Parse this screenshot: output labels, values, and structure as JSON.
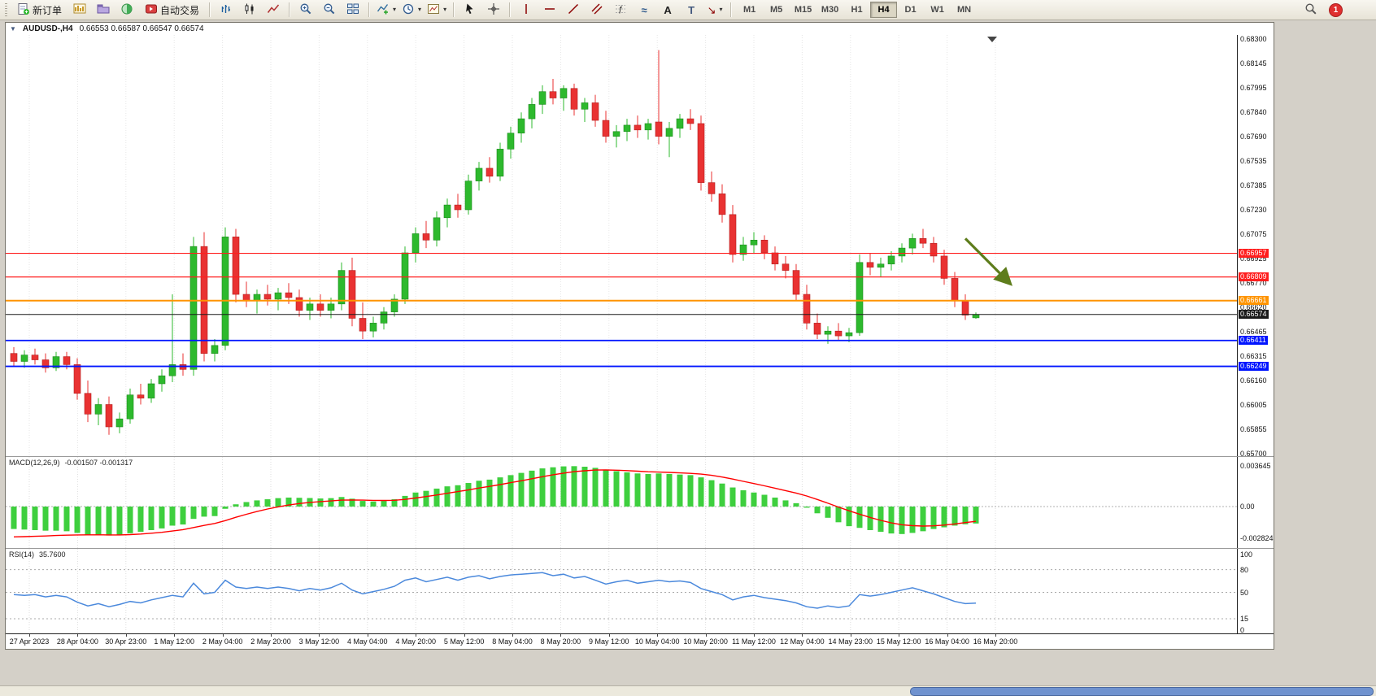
{
  "window": {
    "title_symbol": "AUDUSD-,H4",
    "title_ohlc": "0.66553 0.66587 0.66547 0.66574"
  },
  "toolbar": {
    "new_order_label": "新订单",
    "autotrading_label": "自动交易",
    "timeframes": [
      "M1",
      "M5",
      "M15",
      "M30",
      "H1",
      "H4",
      "D1",
      "W1",
      "MN"
    ],
    "active_timeframe": "H4",
    "notification_count": "1",
    "glyphs": {
      "caret": "▾",
      "oct": "▼",
      "waves": "≈",
      "fibonacci": "ƒ",
      "text": "A",
      "label": "T",
      "arrow": "↘"
    },
    "icon_names": [
      "new-order-icon",
      "charts-icon",
      "profiles-icon",
      "data-window-icon",
      "autotrading-icon",
      "bar-chart-icon",
      "candlestick-chart-icon",
      "line-chart-icon",
      "zoom-in-icon",
      "zoom-out-icon",
      "tile-windows-icon",
      "indicators-icon",
      "periods-icon",
      "templates-icon",
      "cursor-icon",
      "crosshair-icon",
      "vertical-line-icon",
      "horizontal-line-icon",
      "trendline-icon",
      "channel-icon",
      "fibonacci-icon",
      "waves-icon",
      "text-icon",
      "label-icon",
      "arrows-icon",
      "search-icon"
    ]
  },
  "indicators": {
    "macd_name": "MACD(12,26,9)",
    "macd_values": "-0.001507 -0.001317",
    "rsi_name": "RSI(14)",
    "rsi_value": "35.7600"
  },
  "axes": {
    "price_labels": [
      "0.68300",
      "0.68145",
      "0.67995",
      "0.67840",
      "0.67690",
      "0.67535",
      "0.67385",
      "0.67230",
      "0.67075",
      "0.66925",
      "0.66770",
      "0.66620",
      "0.66465",
      "0.66315",
      "0.66160",
      "0.66005",
      "0.65855",
      "0.65700"
    ],
    "macd_labels": [
      "0.003645",
      "0.00",
      "-0.002824"
    ],
    "rsi_labels": [
      "100",
      "80",
      "50",
      "15",
      "0"
    ],
    "time_labels": [
      "27 Apr 2023",
      "28 Apr 04:00",
      "30 Apr 23:00",
      "1 May 12:00",
      "2 May 04:00",
      "2 May 20:00",
      "3 May 12:00",
      "4 May 04:00",
      "4 May 20:00",
      "5 May 12:00",
      "8 May 04:00",
      "8 May 20:00",
      "9 May 12:00",
      "10 May 04:00",
      "10 May 20:00",
      "11 May 12:00",
      "12 May 04:00",
      "14 May 23:00",
      "15 May 12:00",
      "16 May 04:00",
      "16 May 20:00"
    ]
  },
  "hlines": [
    {
      "price": 0.66957,
      "label": "0.66957",
      "color": "#ff1e1e",
      "width": 1.2
    },
    {
      "price": 0.66809,
      "label": "0.66809",
      "color": "#ff1e1e",
      "width": 1.2
    },
    {
      "price": 0.66661,
      "label": "0.66661",
      "color": "#ff9400",
      "width": 2
    },
    {
      "price": 0.66574,
      "label": "0.66574",
      "color": "#1a1a1a",
      "width": 1
    },
    {
      "price": 0.66411,
      "label": "0.66411",
      "color": "#0014ff",
      "width": 1.8
    },
    {
      "price": 0.66249,
      "label": "0.66249",
      "color": "#0014ff",
      "width": 1.8
    }
  ],
  "annotation_arrow": {
    "color": "#5e7d1c",
    "from_index": 90,
    "from_price": 0.6705,
    "to_index": 94.2,
    "to_price": 0.6677
  },
  "chart_data": {
    "type": "candlestick",
    "symbol": "AUDUSD",
    "timeframe": "H4",
    "title": "AUDUSD-,H4",
    "ylim_main": [
      0.657,
      0.683
    ],
    "candles": [
      [
        0.6633,
        0.6637,
        0.6625,
        0.6628
      ],
      [
        0.6628,
        0.6635,
        0.6624,
        0.6632
      ],
      [
        0.6632,
        0.6636,
        0.6626,
        0.6629
      ],
      [
        0.6629,
        0.6633,
        0.6621,
        0.6624
      ],
      [
        0.6624,
        0.6634,
        0.6622,
        0.6631
      ],
      [
        0.6631,
        0.6634,
        0.6623,
        0.6626
      ],
      [
        0.6626,
        0.663,
        0.6604,
        0.6608
      ],
      [
        0.6608,
        0.6616,
        0.659,
        0.6595
      ],
      [
        0.6595,
        0.6605,
        0.6588,
        0.6601
      ],
      [
        0.6601,
        0.6606,
        0.6582,
        0.6587
      ],
      [
        0.6587,
        0.6596,
        0.6583,
        0.6592
      ],
      [
        0.6592,
        0.6611,
        0.6589,
        0.6607
      ],
      [
        0.6607,
        0.6614,
        0.6601,
        0.6605
      ],
      [
        0.6605,
        0.6617,
        0.6602,
        0.6614
      ],
      [
        0.6614,
        0.6623,
        0.6609,
        0.6619
      ],
      [
        0.6619,
        0.667,
        0.6615,
        0.6626
      ],
      [
        0.6626,
        0.6633,
        0.6619,
        0.6623
      ],
      [
        0.6623,
        0.6706,
        0.6619,
        0.67
      ],
      [
        0.67,
        0.6709,
        0.6628,
        0.6633
      ],
      [
        0.6633,
        0.6642,
        0.6628,
        0.6638
      ],
      [
        0.6638,
        0.6712,
        0.6635,
        0.6706
      ],
      [
        0.6706,
        0.6711,
        0.6665,
        0.667
      ],
      [
        0.667,
        0.6678,
        0.6662,
        0.6666
      ],
      [
        0.6666,
        0.6673,
        0.6658,
        0.667
      ],
      [
        0.667,
        0.6676,
        0.6663,
        0.6667
      ],
      [
        0.6667,
        0.6674,
        0.666,
        0.6671
      ],
      [
        0.6671,
        0.6677,
        0.6664,
        0.6668
      ],
      [
        0.6668,
        0.6673,
        0.6656,
        0.666
      ],
      [
        0.666,
        0.6668,
        0.6654,
        0.6664
      ],
      [
        0.6664,
        0.667,
        0.6656,
        0.666
      ],
      [
        0.666,
        0.6668,
        0.6655,
        0.6664
      ],
      [
        0.6664,
        0.669,
        0.666,
        0.6685
      ],
      [
        0.6685,
        0.6693,
        0.665,
        0.6655
      ],
      [
        0.6655,
        0.6665,
        0.6642,
        0.6647
      ],
      [
        0.6647,
        0.6656,
        0.6643,
        0.6652
      ],
      [
        0.6652,
        0.6662,
        0.6648,
        0.6659
      ],
      [
        0.6659,
        0.667,
        0.6656,
        0.6667
      ],
      [
        0.6667,
        0.67,
        0.6664,
        0.6696
      ],
      [
        0.6696,
        0.6712,
        0.669,
        0.6708
      ],
      [
        0.6708,
        0.6716,
        0.6699,
        0.6704
      ],
      [
        0.6704,
        0.6722,
        0.67,
        0.6718
      ],
      [
        0.6718,
        0.673,
        0.6712,
        0.6726
      ],
      [
        0.6726,
        0.6733,
        0.6718,
        0.6723
      ],
      [
        0.6723,
        0.6745,
        0.672,
        0.6741
      ],
      [
        0.6741,
        0.6753,
        0.6735,
        0.6749
      ],
      [
        0.6749,
        0.6756,
        0.674,
        0.6744
      ],
      [
        0.6744,
        0.6765,
        0.6741,
        0.6761
      ],
      [
        0.6761,
        0.6775,
        0.6755,
        0.6771
      ],
      [
        0.6771,
        0.6784,
        0.6765,
        0.678
      ],
      [
        0.678,
        0.6793,
        0.6774,
        0.6789
      ],
      [
        0.6789,
        0.6801,
        0.6783,
        0.6797
      ],
      [
        0.6797,
        0.6805,
        0.6789,
        0.6793
      ],
      [
        0.6793,
        0.6801,
        0.6785,
        0.6799
      ],
      [
        0.6799,
        0.6802,
        0.6782,
        0.6786
      ],
      [
        0.6786,
        0.6793,
        0.6778,
        0.679
      ],
      [
        0.679,
        0.6795,
        0.6775,
        0.6779
      ],
      [
        0.6779,
        0.6785,
        0.6765,
        0.6769
      ],
      [
        0.6769,
        0.6776,
        0.6762,
        0.6772
      ],
      [
        0.6772,
        0.678,
        0.6766,
        0.6776
      ],
      [
        0.6776,
        0.6782,
        0.6768,
        0.6773
      ],
      [
        0.6773,
        0.678,
        0.6767,
        0.6777
      ],
      [
        0.6778,
        0.6823,
        0.6764,
        0.6769
      ],
      [
        0.6769,
        0.6778,
        0.6756,
        0.6774
      ],
      [
        0.6774,
        0.6783,
        0.6768,
        0.678
      ],
      [
        0.678,
        0.6786,
        0.6773,
        0.6777
      ],
      [
        0.6777,
        0.6782,
        0.6735,
        0.674
      ],
      [
        0.674,
        0.6747,
        0.6728,
        0.6733
      ],
      [
        0.6733,
        0.6739,
        0.6715,
        0.672
      ],
      [
        0.672,
        0.6726,
        0.669,
        0.6695
      ],
      [
        0.6695,
        0.6706,
        0.6691,
        0.6701
      ],
      [
        0.6701,
        0.6709,
        0.6696,
        0.6704
      ],
      [
        0.6704,
        0.6707,
        0.6692,
        0.6696
      ],
      [
        0.6696,
        0.67,
        0.6685,
        0.6689
      ],
      [
        0.6689,
        0.6694,
        0.668,
        0.6685
      ],
      [
        0.6685,
        0.6689,
        0.6666,
        0.667
      ],
      [
        0.667,
        0.6676,
        0.6648,
        0.6652
      ],
      [
        0.6652,
        0.6658,
        0.6642,
        0.6645
      ],
      [
        0.6645,
        0.665,
        0.6639,
        0.6647
      ],
      [
        0.6647,
        0.6652,
        0.6641,
        0.6644
      ],
      [
        0.6644,
        0.6649,
        0.664,
        0.6646
      ],
      [
        0.6646,
        0.6695,
        0.6644,
        0.669
      ],
      [
        0.669,
        0.6696,
        0.6682,
        0.6687
      ],
      [
        0.6687,
        0.6693,
        0.6681,
        0.6689
      ],
      [
        0.6689,
        0.6697,
        0.6685,
        0.6694
      ],
      [
        0.6694,
        0.6702,
        0.669,
        0.6699
      ],
      [
        0.6699,
        0.6708,
        0.6695,
        0.6705
      ],
      [
        0.6705,
        0.6711,
        0.6699,
        0.6702
      ],
      [
        0.6702,
        0.6706,
        0.669,
        0.6694
      ],
      [
        0.6694,
        0.6698,
        0.6676,
        0.668
      ],
      [
        0.668,
        0.6684,
        0.6662,
        0.6666
      ],
      [
        0.6666,
        0.667,
        0.6654,
        0.6657
      ],
      [
        0.66553,
        0.66587,
        0.66547,
        0.66574
      ]
    ],
    "macd": {
      "params": "12,26,9",
      "histogram": [
        -0.002,
        -0.00205,
        -0.0021,
        -0.00215,
        -0.00215,
        -0.0022,
        -0.00235,
        -0.0025,
        -0.00252,
        -0.00258,
        -0.0025,
        -0.00238,
        -0.00225,
        -0.0021,
        -0.00195,
        -0.0017,
        -0.0016,
        -0.0011,
        -0.0009,
        -0.00085,
        -0.0002,
        0.0002,
        0.0004,
        0.00055,
        0.00065,
        0.00075,
        0.0008,
        0.00078,
        0.00076,
        0.00072,
        0.00075,
        0.00085,
        0.0007,
        0.0005,
        0.00045,
        0.0005,
        0.00065,
        0.00095,
        0.00125,
        0.0014,
        0.0016,
        0.0018,
        0.0019,
        0.0021,
        0.0023,
        0.0024,
        0.0026,
        0.0028,
        0.003,
        0.0032,
        0.0034,
        0.0035,
        0.00358,
        0.0036,
        0.00355,
        0.00345,
        0.0033,
        0.00315,
        0.00305,
        0.00295,
        0.0029,
        0.00295,
        0.0029,
        0.00285,
        0.0028,
        0.0026,
        0.00235,
        0.00205,
        0.0017,
        0.00145,
        0.00125,
        0.00105,
        0.0008,
        0.00055,
        0.0003,
        -0.0001,
        -0.0006,
        -0.001,
        -0.0014,
        -0.00175,
        -0.0019,
        -0.0021,
        -0.00225,
        -0.0024,
        -0.00245,
        -0.00235,
        -0.0022,
        -0.002,
        -0.00185,
        -0.0017,
        -0.00158,
        -0.00151
      ],
      "signal": [
        -0.0027,
        -0.00268,
        -0.00265,
        -0.00262,
        -0.00258,
        -0.00255,
        -0.00253,
        -0.00252,
        -0.00252,
        -0.00253,
        -0.00253,
        -0.0025,
        -0.00245,
        -0.00238,
        -0.0023,
        -0.00218,
        -0.00206,
        -0.00187,
        -0.00168,
        -0.00151,
        -0.00125,
        -0.00096,
        -0.00069,
        -0.00044,
        -0.00022,
        -3e-05,
        0.00014,
        0.00027,
        0.00037,
        0.00044,
        0.0005,
        0.00057,
        0.00059,
        0.00057,
        0.00055,
        0.00054,
        0.00056,
        0.00064,
        0.00076,
        0.00089,
        0.00103,
        0.00118,
        0.00133,
        0.00148,
        0.00165,
        0.0018,
        0.00196,
        0.00213,
        0.0023,
        0.00248,
        0.00266,
        0.00283,
        0.00298,
        0.00311,
        0.00319,
        0.00325,
        0.00326,
        0.00324,
        0.0032,
        0.00315,
        0.0031,
        0.00307,
        0.00304,
        0.003,
        0.00296,
        0.00289,
        0.00278,
        0.00263,
        0.00245,
        0.00225,
        0.00205,
        0.00185,
        0.00164,
        0.00142,
        0.0012,
        0.00094,
        0.00063,
        0.0003,
        -4e-05,
        -0.00038,
        -0.00068,
        -0.00097,
        -0.00123,
        -0.00146,
        -0.00162,
        -0.0017,
        -0.00174,
        -0.00172,
        -0.00165,
        -0.00155,
        -0.00143,
        -0.00132
      ]
    },
    "rsi": {
      "period": 14,
      "levels": [
        80,
        50,
        15
      ],
      "values": [
        47,
        46,
        47,
        44,
        46,
        44,
        37,
        32,
        35,
        31,
        34,
        38,
        36,
        40,
        43,
        46,
        44,
        62,
        48,
        50,
        66,
        57,
        55,
        57,
        55,
        57,
        55,
        52,
        55,
        53,
        56,
        62,
        53,
        48,
        51,
        54,
        58,
        66,
        69,
        64,
        67,
        70,
        66,
        70,
        72,
        68,
        71,
        73,
        74,
        75,
        76,
        72,
        74,
        69,
        71,
        66,
        61,
        64,
        66,
        62,
        64,
        66,
        64,
        65,
        63,
        55,
        51,
        47,
        40,
        44,
        46,
        43,
        41,
        39,
        36,
        31,
        29,
        32,
        30,
        32,
        47,
        45,
        47,
        50,
        53,
        56,
        52,
        48,
        43,
        38,
        35,
        35.76
      ]
    },
    "colors": {
      "up": "#2db92d",
      "up_border": "#1d8a1d",
      "down": "#e93232",
      "down_border": "#b31f1f",
      "macd_hist": "#3ecf3e",
      "macd_signal": "#ff0000",
      "rsi_line": "#4b89dc"
    }
  }
}
